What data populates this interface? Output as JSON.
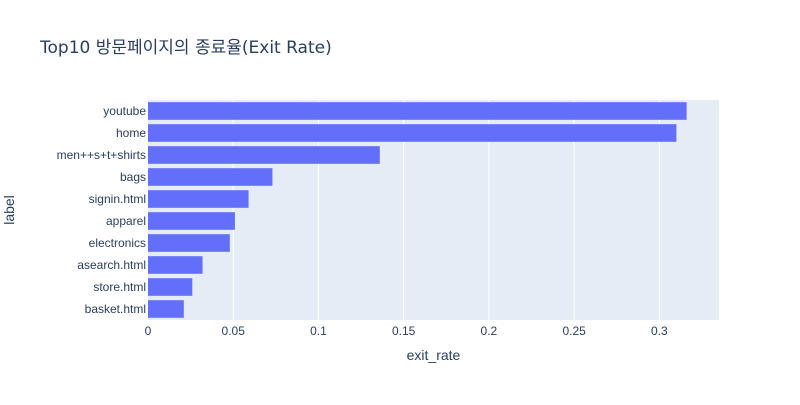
{
  "chart_data": {
    "type": "bar",
    "orientation": "horizontal",
    "title": "Top10 방문페이지의 종료율(Exit Rate)",
    "xlabel": "exit_rate",
    "ylabel": "label",
    "categories": [
      "youtube",
      "home",
      "men++s+t+shirts",
      "bags",
      "signin.html",
      "apparel",
      "electronics",
      "asearch.html",
      "store.html",
      "basket.html"
    ],
    "values": [
      0.316,
      0.31,
      0.136,
      0.073,
      0.059,
      0.051,
      0.048,
      0.032,
      0.026,
      0.021
    ],
    "xlim": [
      0,
      0.335
    ],
    "xticks": [
      0,
      0.05,
      0.1,
      0.15,
      0.2,
      0.25,
      0.3
    ],
    "xtick_labels": [
      "0",
      "0.05",
      "0.1",
      "0.15",
      "0.2",
      "0.25",
      "0.3"
    ],
    "grid": true,
    "colors": {
      "bar": "#636efa",
      "plot_bg": "#e5ecf6",
      "grid": "#ffffff",
      "text": "#2a3f5f"
    }
  }
}
